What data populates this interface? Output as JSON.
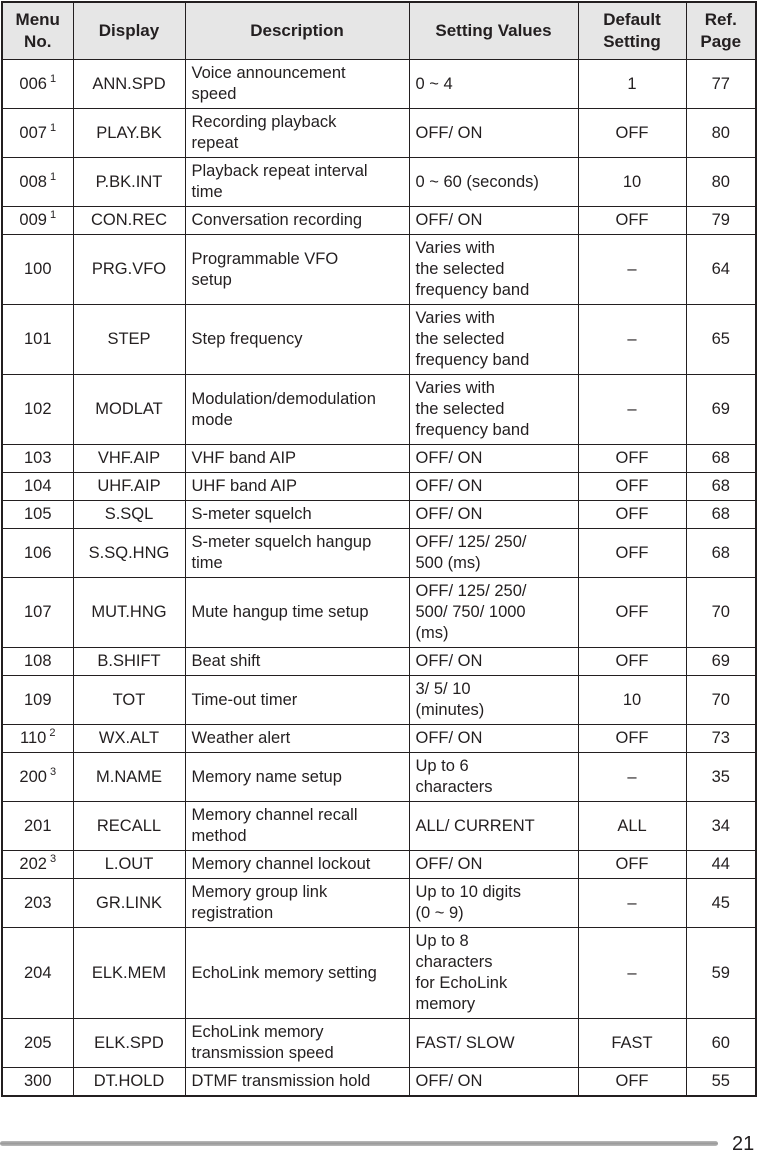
{
  "headers": [
    "Menu\nNo.",
    "Display",
    "Description",
    "Setting Values",
    "Default\nSetting",
    "Ref.\nPage"
  ],
  "rows": [
    {
      "no": "006",
      "note": "1",
      "display": "ANN.SPD",
      "description": "Voice announcement\nspeed",
      "values": "0 ~ 4",
      "default": "1",
      "page": "77"
    },
    {
      "no": "007",
      "note": "1",
      "display": "PLAY.BK",
      "description": "Recording playback\nrepeat",
      "values": "OFF/ ON",
      "default": "OFF",
      "page": "80"
    },
    {
      "no": "008",
      "note": "1",
      "display": "P.BK.INT",
      "description": "Playback repeat interval\ntime",
      "values": "0 ~ 60 (seconds)",
      "default": "10",
      "page": "80"
    },
    {
      "no": "009",
      "note": "1",
      "display": "CON.REC",
      "description": "Conversation recording",
      "values": "OFF/ ON",
      "default": "OFF",
      "page": "79"
    },
    {
      "no": "100",
      "note": "",
      "display": "PRG.VFO",
      "description": "Programmable VFO\nsetup",
      "values": "Varies with\nthe selected\nfrequency band",
      "default": "–",
      "page": "64"
    },
    {
      "no": "101",
      "note": "",
      "display": "STEP",
      "description": "Step frequency",
      "values": "Varies with\nthe selected\nfrequency band",
      "default": "–",
      "page": "65"
    },
    {
      "no": "102",
      "note": "",
      "display": "MODLAT",
      "description": "Modulation/demodulation\nmode",
      "values": "Varies with\nthe selected\nfrequency band",
      "default": "–",
      "page": "69"
    },
    {
      "no": "103",
      "note": "",
      "display": "VHF.AIP",
      "description": "VHF band AIP",
      "values": "OFF/ ON",
      "default": "OFF",
      "page": "68"
    },
    {
      "no": "104",
      "note": "",
      "display": "UHF.AIP",
      "description": "UHF band AIP",
      "values": "OFF/ ON",
      "default": "OFF",
      "page": "68"
    },
    {
      "no": "105",
      "note": "",
      "display": "S.SQL",
      "description": "S-meter squelch",
      "values": "OFF/ ON",
      "default": "OFF",
      "page": "68"
    },
    {
      "no": "106",
      "note": "",
      "display": "S.SQ.HNG",
      "description": "S-meter squelch hangup\ntime",
      "values": "OFF/ 125/ 250/\n500 (ms)",
      "default": "OFF",
      "page": "68"
    },
    {
      "no": "107",
      "note": "",
      "display": "MUT.HNG",
      "description": "Mute hangup time setup",
      "values": "OFF/ 125/ 250/\n500/ 750/ 1000\n(ms)",
      "default": "OFF",
      "page": "70"
    },
    {
      "no": "108",
      "note": "",
      "display": "B.SHIFT",
      "description": "Beat shift",
      "values": "OFF/ ON",
      "default": "OFF",
      "page": "69"
    },
    {
      "no": "109",
      "note": "",
      "display": "TOT",
      "description": "Time-out timer",
      "values": "3/ 5/ 10\n(minutes)",
      "default": "10",
      "page": "70"
    },
    {
      "no": "110",
      "note": "2",
      "display": "WX.ALT",
      "description": "Weather alert",
      "values": "OFF/ ON",
      "default": "OFF",
      "page": "73"
    },
    {
      "no": "200",
      "note": "3",
      "display": "M.NAME",
      "description": "Memory name setup",
      "values": "Up to 6\ncharacters",
      "default": "–",
      "page": "35"
    },
    {
      "no": "201",
      "note": "",
      "display": "RECALL",
      "description": "Memory channel recall\nmethod",
      "values": "ALL/ CURRENT",
      "default": "ALL",
      "page": "34"
    },
    {
      "no": "202",
      "note": "3",
      "display": "L.OUT",
      "description": "Memory channel lockout",
      "values": "OFF/ ON",
      "default": "OFF",
      "page": "44"
    },
    {
      "no": "203",
      "note": "",
      "display": "GR.LINK",
      "description": "Memory group link\nregistration",
      "values": "Up to 10 digits\n(0 ~ 9)",
      "default": "–",
      "page": "45"
    },
    {
      "no": "204",
      "note": "",
      "display": "ELK.MEM",
      "description": "EchoLink memory setting",
      "values": "Up to 8\ncharacters\nfor EchoLink\nmemory",
      "default": "–",
      "page": "59"
    },
    {
      "no": "205",
      "note": "",
      "display": "ELK.SPD",
      "description": "EchoLink memory\ntransmission speed",
      "values": "FAST/ SLOW",
      "default": "FAST",
      "page": "60"
    },
    {
      "no": "300",
      "note": "",
      "display": "DT.HOLD",
      "description": "DTMF transmission hold",
      "values": "OFF/ ON",
      "default": "OFF",
      "page": "55"
    }
  ],
  "page_number": "21"
}
